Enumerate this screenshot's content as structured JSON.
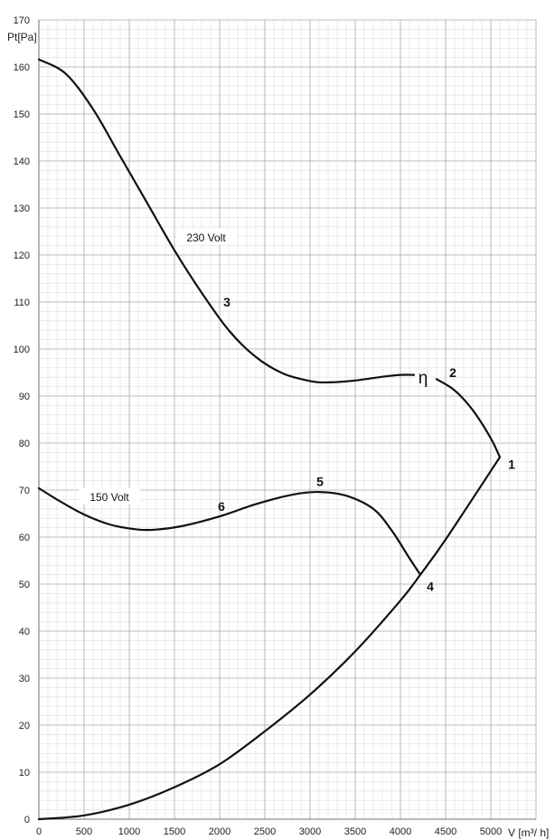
{
  "chart_data": {
    "type": "line",
    "xlabel": "V [m³/ h]",
    "ylabel": "Pt[Pa]",
    "xlim": [
      0,
      5000
    ],
    "ylim": [
      0,
      170
    ],
    "x_ticks": [
      0,
      500,
      1000,
      1500,
      2000,
      2500,
      3000,
      3500,
      4000,
      4500,
      5000
    ],
    "y_ticks": [
      0,
      10,
      20,
      30,
      40,
      50,
      60,
      70,
      80,
      90,
      100,
      110,
      120,
      130,
      140,
      150,
      160,
      170
    ],
    "grid": true,
    "series": [
      {
        "name": "230 Volt",
        "points": [
          [
            0,
            161.6
          ],
          [
            300,
            158.5
          ],
          [
            600,
            151
          ],
          [
            900,
            141
          ],
          [
            1200,
            131
          ],
          [
            1500,
            121
          ],
          [
            1800,
            112
          ],
          [
            2100,
            104
          ],
          [
            2400,
            98.3
          ],
          [
            2700,
            94.8
          ],
          [
            3000,
            93.2
          ],
          [
            3200,
            92.9
          ],
          [
            3500,
            93.3
          ],
          [
            3800,
            94.1
          ],
          [
            4000,
            94.5
          ],
          [
            4150,
            94.5
          ]
        ]
      },
      {
        "name": "230 Volt",
        "points": [
          [
            4400,
            93.6
          ],
          [
            4600,
            91.2
          ],
          [
            4800,
            87
          ],
          [
            5000,
            81
          ],
          [
            5100,
            77
          ]
        ]
      },
      {
        "name": "150 Volt",
        "points": [
          [
            0,
            70.4
          ],
          [
            200,
            68
          ],
          [
            500,
            64.8
          ],
          [
            800,
            62.6
          ],
          [
            1100,
            61.6
          ],
          [
            1300,
            61.6
          ],
          [
            1600,
            62.4
          ],
          [
            2000,
            64.4
          ],
          [
            2400,
            67
          ],
          [
            2800,
            69
          ],
          [
            3100,
            69.6
          ],
          [
            3400,
            68.8
          ],
          [
            3700,
            66
          ],
          [
            3900,
            61.5
          ],
          [
            4100,
            55.5
          ],
          [
            4220,
            52
          ]
        ]
      },
      {
        "name": "",
        "points": [
          [
            0,
            0
          ],
          [
            500,
            0.8
          ],
          [
            1000,
            3.1
          ],
          [
            1500,
            6.8
          ],
          [
            2000,
            11.7
          ],
          [
            2500,
            18.7
          ],
          [
            3000,
            26.5
          ],
          [
            3500,
            35.7
          ],
          [
            4000,
            46.5
          ],
          [
            4220,
            52
          ],
          [
            4500,
            59.5
          ],
          [
            5100,
            77
          ]
        ]
      }
    ],
    "annotations": [
      {
        "text": "230 Volt",
        "x": 1850,
        "y": 123.5,
        "kind": "curve"
      },
      {
        "text": "150 Volt",
        "x": 780,
        "y": 68.3,
        "kind": "curve"
      },
      {
        "text": "1",
        "x": 5230,
        "y": 75.5,
        "kind": "point"
      },
      {
        "text": "2",
        "x": 4580,
        "y": 95,
        "kind": "point"
      },
      {
        "text": "3",
        "x": 2080,
        "y": 110,
        "kind": "point"
      },
      {
        "text": "4",
        "x": 4330,
        "y": 49.5,
        "kind": "point"
      },
      {
        "text": "5",
        "x": 3110,
        "y": 71.8,
        "kind": "point"
      },
      {
        "text": "6",
        "x": 2020,
        "y": 66.5,
        "kind": "point"
      },
      {
        "text": "η",
        "x": 4250,
        "y": 93.8,
        "kind": "eta"
      }
    ]
  }
}
